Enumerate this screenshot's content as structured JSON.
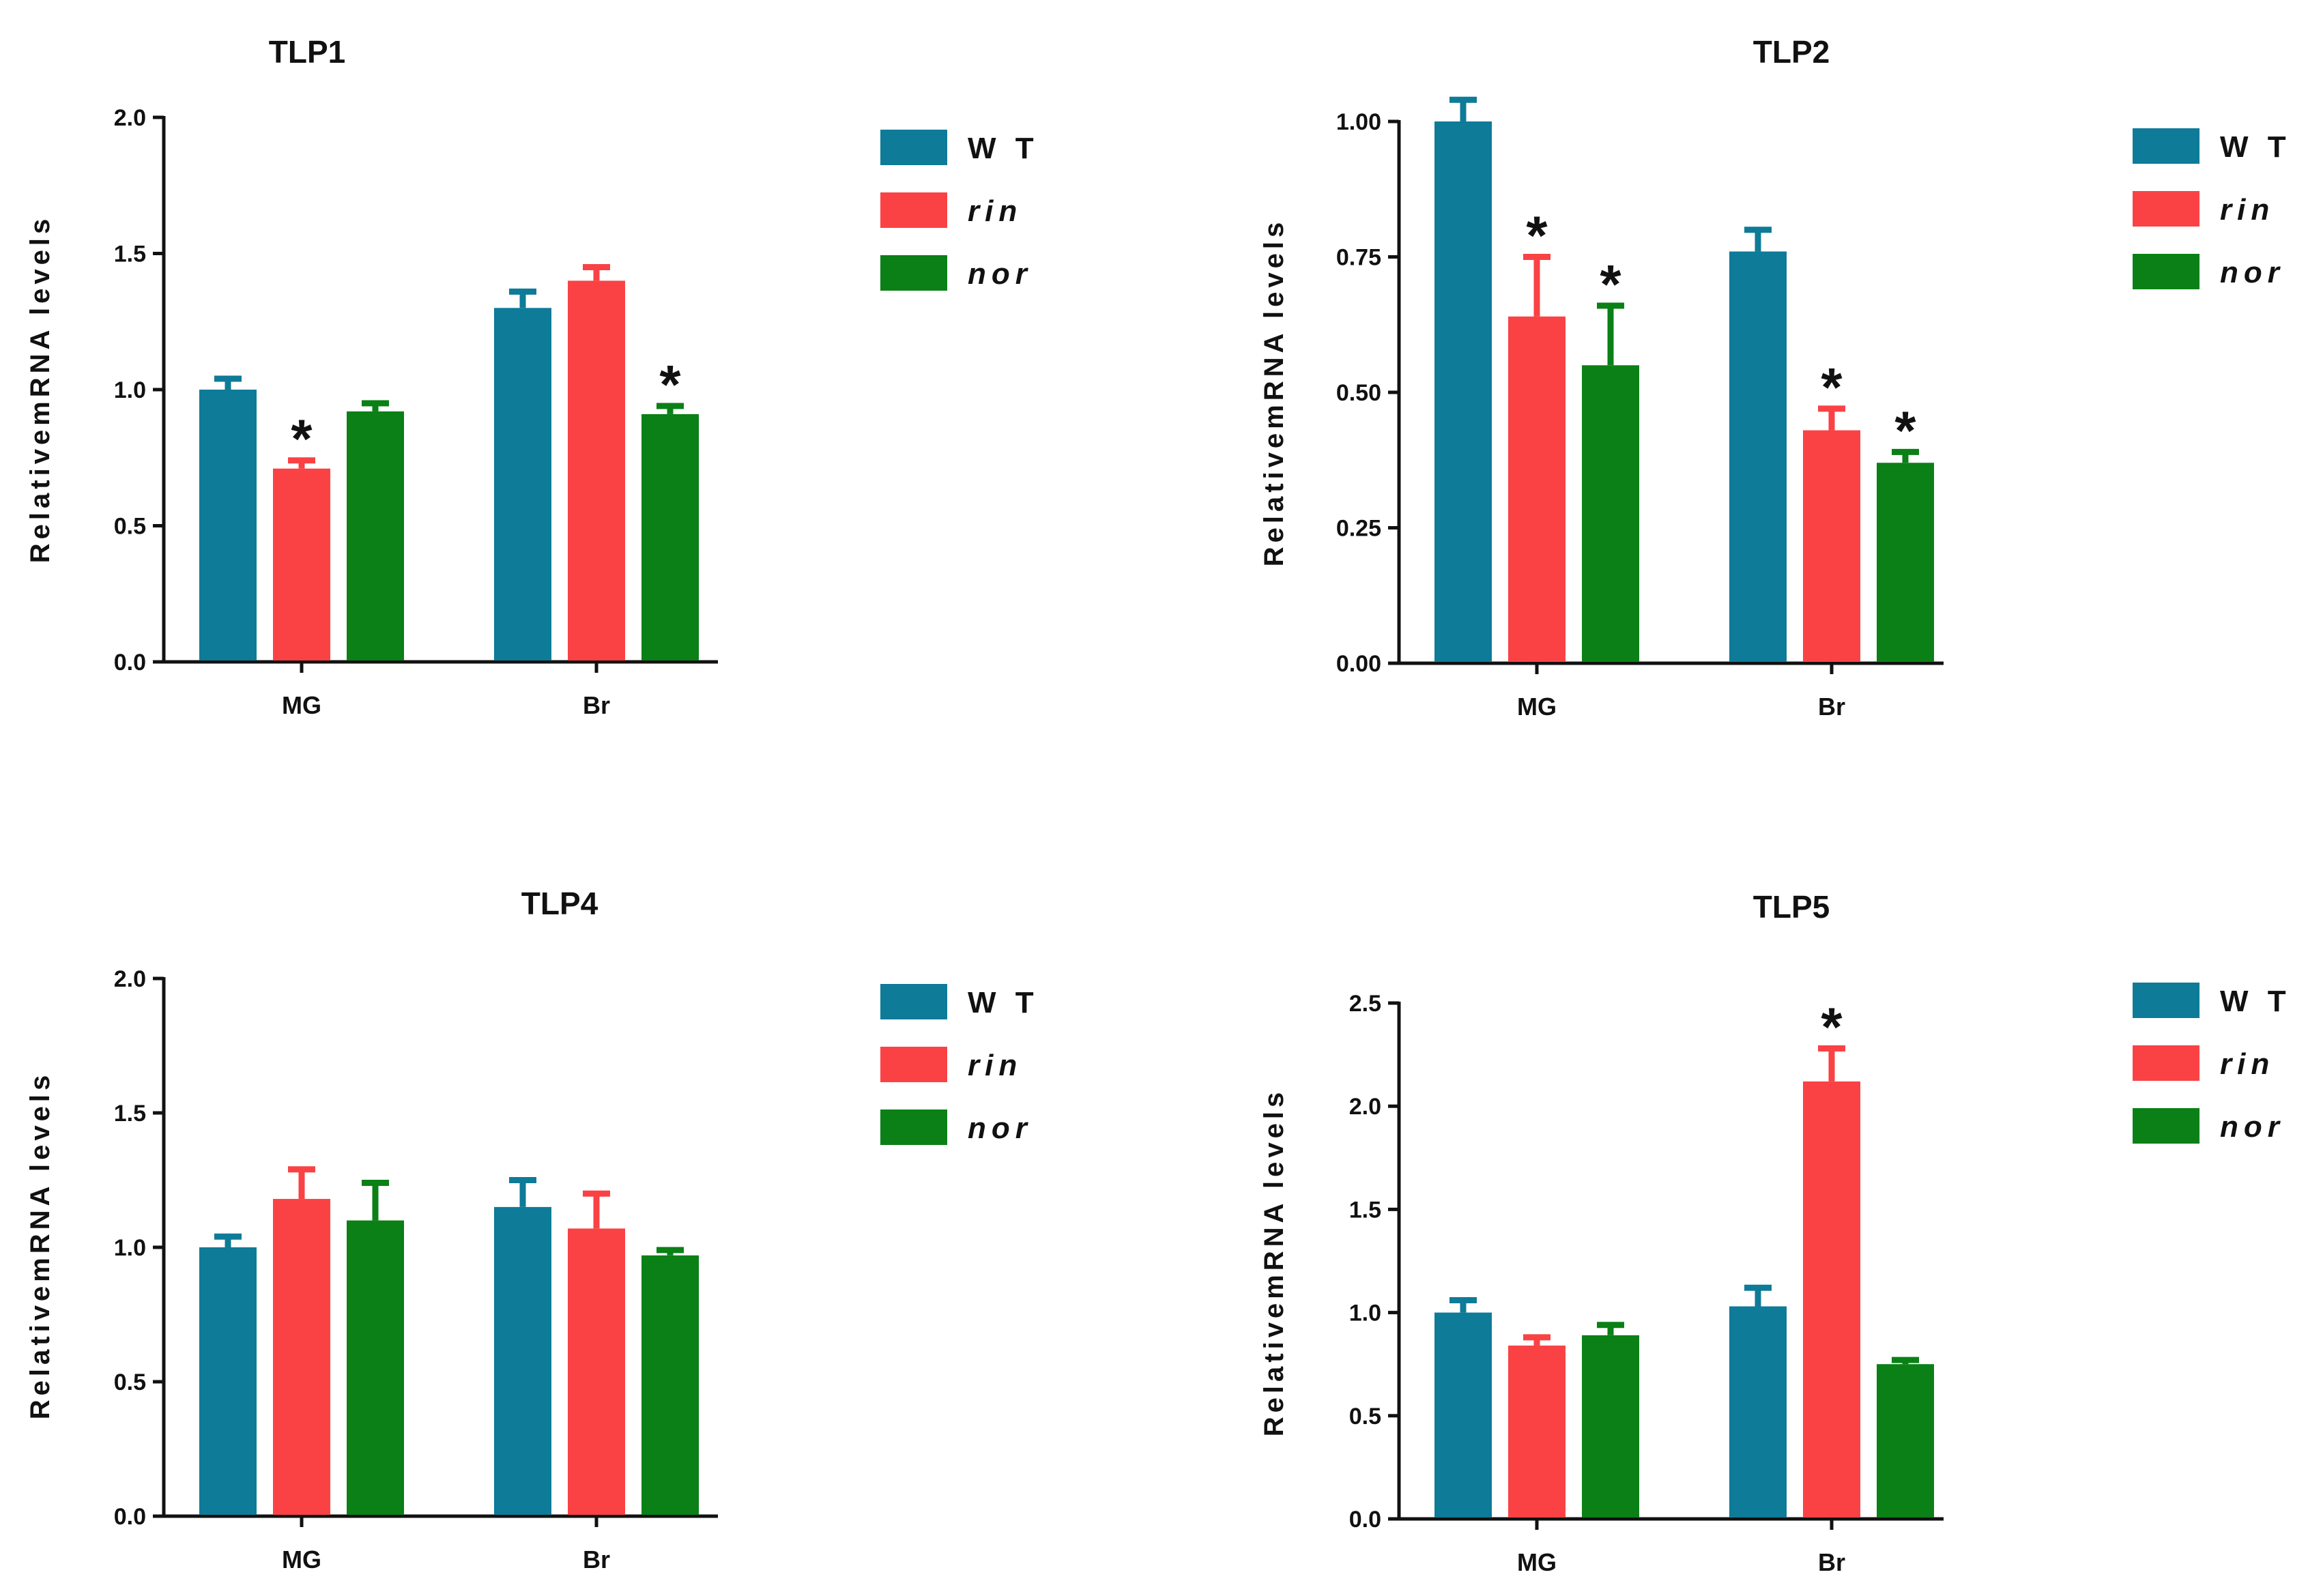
{
  "colors": {
    "WT": "#0e7b98",
    "rin": "#fa4245",
    "nor": "#0a8016",
    "axis": "#111111"
  },
  "chart_data": [
    {
      "type": "bar",
      "title": "TLP1",
      "ylabel": "RelativemRNA levels",
      "ylim": [
        0,
        2.0
      ],
      "yticks": [
        "0.0",
        "0.5",
        "1.0",
        "1.5",
        "2.0"
      ],
      "categories": [
        "MG",
        "Br"
      ],
      "legend": "right",
      "series": [
        {
          "name": "W T",
          "italic": false,
          "values": [
            1.0,
            1.3
          ],
          "errors": [
            0.04,
            0.06
          ],
          "sig": [
            false,
            false
          ]
        },
        {
          "name": "rin",
          "italic": true,
          "values": [
            0.71,
            1.4
          ],
          "errors": [
            0.03,
            0.05
          ],
          "sig": [
            true,
            false
          ]
        },
        {
          "name": "nor",
          "italic": true,
          "values": [
            0.92,
            0.91
          ],
          "errors": [
            0.03,
            0.03
          ],
          "sig": [
            false,
            true
          ]
        }
      ],
      "annotation": "*"
    },
    {
      "type": "bar",
      "title": "TLP2",
      "ylabel": "RelativemRNA levels",
      "ylim": [
        0,
        1.0
      ],
      "yticks": [
        "0.00",
        "0.25",
        "0.50",
        "0.75",
        "1.00"
      ],
      "categories": [
        "MG",
        "Br"
      ],
      "legend": "right",
      "series": [
        {
          "name": "W T",
          "italic": false,
          "values": [
            1.0,
            0.76
          ],
          "errors": [
            0.04,
            0.04
          ],
          "sig": [
            false,
            false
          ]
        },
        {
          "name": "rin",
          "italic": true,
          "values": [
            0.64,
            0.43
          ],
          "errors": [
            0.11,
            0.04
          ],
          "sig": [
            true,
            true
          ]
        },
        {
          "name": "nor",
          "italic": true,
          "values": [
            0.55,
            0.37
          ],
          "errors": [
            0.11,
            0.02
          ],
          "sig": [
            true,
            true
          ]
        }
      ],
      "annotation": "*"
    },
    {
      "type": "bar",
      "title": "TLP4",
      "ylabel": "RelativemRNA levels",
      "ylim": [
        0,
        2.0
      ],
      "yticks": [
        "0.0",
        "0.5",
        "1.0",
        "1.5",
        "2.0"
      ],
      "categories": [
        "MG",
        "Br"
      ],
      "legend": "right",
      "series": [
        {
          "name": "W T",
          "italic": false,
          "values": [
            1.0,
            1.15
          ],
          "errors": [
            0.04,
            0.1
          ],
          "sig": [
            false,
            false
          ]
        },
        {
          "name": "rin",
          "italic": true,
          "values": [
            1.18,
            1.07
          ],
          "errors": [
            0.11,
            0.13
          ],
          "sig": [
            false,
            false
          ]
        },
        {
          "name": "nor",
          "italic": true,
          "values": [
            1.1,
            0.97
          ],
          "errors": [
            0.14,
            0.02
          ],
          "sig": [
            false,
            false
          ]
        }
      ],
      "annotation": "*"
    },
    {
      "type": "bar",
      "title": "TLP5",
      "ylabel": "RelativemRNA levels",
      "ylim": [
        0,
        2.5
      ],
      "yticks": [
        "0.0",
        "0.5",
        "1.0",
        "1.5",
        "2.0",
        "2.5"
      ],
      "categories": [
        "MG",
        "Br"
      ],
      "legend": "right",
      "series": [
        {
          "name": "W T",
          "italic": false,
          "values": [
            1.0,
            1.03
          ],
          "errors": [
            0.06,
            0.09
          ],
          "sig": [
            false,
            false
          ]
        },
        {
          "name": "rin",
          "italic": true,
          "values": [
            0.84,
            2.12
          ],
          "errors": [
            0.04,
            0.16
          ],
          "sig": [
            false,
            true
          ]
        },
        {
          "name": "nor",
          "italic": true,
          "values": [
            0.89,
            0.75
          ],
          "errors": [
            0.05,
            0.02
          ],
          "sig": [
            false,
            false
          ]
        }
      ],
      "annotation": "*"
    }
  ]
}
